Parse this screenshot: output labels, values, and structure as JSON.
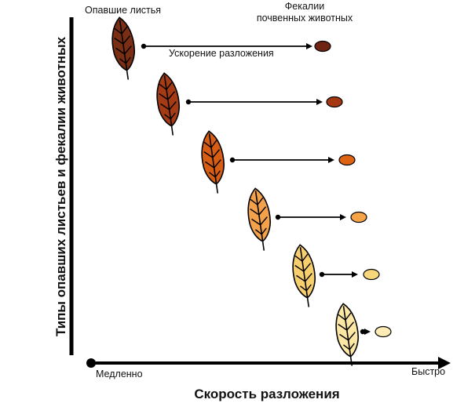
{
  "labels": {
    "leaves": "Опавшие листья",
    "feces_line1": "Фекалии",
    "feces_line2": "почвенных животных",
    "acceleration": "Ускорение разложения",
    "slow": "Медленно",
    "fast": "Быстро",
    "x_axis_title": "Скорость разложения",
    "y_axis_title": "Типы опавших листьев и фекалии животных"
  },
  "stages": [
    {
      "leaf_color": "#7a2f14",
      "pellet_color": "#6e2410"
    },
    {
      "leaf_color": "#a53b14",
      "pellet_color": "#a33812"
    },
    {
      "leaf_color": "#d75d14",
      "pellet_color": "#dd6312"
    },
    {
      "leaf_color": "#f3a14b",
      "pellet_color": "#f7a448"
    },
    {
      "leaf_color": "#f8cf6e",
      "pellet_color": "#f8d67a"
    },
    {
      "leaf_color": "#fde7a5",
      "pellet_color": "#fdedb4"
    }
  ]
}
